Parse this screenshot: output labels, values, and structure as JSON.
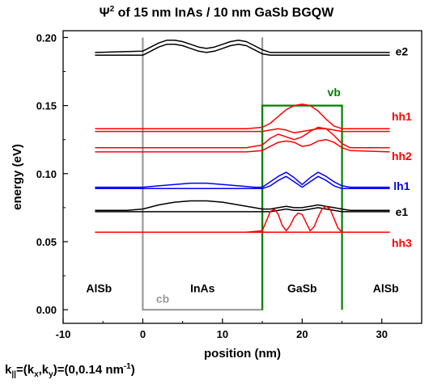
{
  "title": {
    "psi": "Ψ",
    "sup": "2",
    "rest": " of 15 nm InAs / 10 nm GaSb BGQW"
  },
  "footnote": {
    "k": "k",
    "k_sub": "||",
    "eq": "=(k",
    "kx_sub": "x",
    "comma": ",k",
    "ky_sub": "y",
    "val": ")=(0,0.14 nm",
    "exp": "-1",
    "close": ")"
  },
  "colors": {
    "black": "#000000",
    "red": "#ff0000",
    "blue": "#0000ff",
    "green": "#008000",
    "gray": "#999999"
  },
  "chart_data": {
    "type": "line",
    "xlabel": "position (nm)",
    "ylabel": "energy (eV)",
    "xlim": [
      -10,
      35
    ],
    "ylim": [
      -0.01,
      0.205
    ],
    "xticks": [
      -10,
      0,
      10,
      20,
      30
    ],
    "yticks": [
      "0.00",
      "0.05",
      "0.10",
      "0.15",
      "0.20"
    ],
    "region_labels": [
      {
        "text": "AlSb",
        "x": -5.5,
        "y": 0.013,
        "color": "#000000"
      },
      {
        "text": "InAs",
        "x": 7.5,
        "y": 0.013,
        "color": "#000000"
      },
      {
        "text": "GaSb",
        "x": 20.0,
        "y": 0.013,
        "color": "#000000"
      },
      {
        "text": "AlSb",
        "x": 30.5,
        "y": 0.013,
        "color": "#000000"
      }
    ],
    "band_edges": [
      {
        "name": "cb",
        "color": "#999999",
        "x": [
          0,
          0,
          15,
          15
        ],
        "y": [
          0.2,
          0.0,
          0.0,
          0.2
        ],
        "label_x": 2.5,
        "label_y": 0.005
      },
      {
        "name": "vb",
        "color": "#008000",
        "x": [
          15,
          15,
          25,
          25
        ],
        "y": [
          0.0,
          0.15,
          0.15,
          0.0
        ],
        "label_x": 24.0,
        "label_y": 0.157
      }
    ],
    "series": [
      {
        "name": "e2",
        "color": "#000000",
        "label_x": 32.5,
        "label_y": 0.187,
        "x": [
          -6,
          0,
          1,
          2,
          3,
          4,
          5,
          6,
          7,
          8,
          9,
          10,
          11,
          12,
          13,
          14,
          15,
          16,
          18,
          20,
          22,
          24,
          26,
          28,
          31
        ],
        "upper": [
          0.189,
          0.19,
          0.193,
          0.196,
          0.198,
          0.198,
          0.197,
          0.195,
          0.193,
          0.192,
          0.193,
          0.195,
          0.197,
          0.198,
          0.197,
          0.194,
          0.191,
          0.189,
          0.189,
          0.189,
          0.189,
          0.189,
          0.189,
          0.189,
          0.189
        ],
        "lower": [
          0.187,
          0.187,
          0.19,
          0.193,
          0.195,
          0.195,
          0.194,
          0.192,
          0.19,
          0.189,
          0.19,
          0.192,
          0.194,
          0.195,
          0.194,
          0.191,
          0.188,
          0.187,
          0.187,
          0.187,
          0.187,
          0.187,
          0.187,
          0.187,
          0.187
        ]
      },
      {
        "name": "hh1",
        "color": "#ff0000",
        "label_x": 32.5,
        "label_y": 0.139,
        "x": [
          -6,
          0,
          5,
          10,
          13,
          15,
          16,
          17,
          18,
          19,
          20,
          21,
          22,
          23,
          24,
          25,
          26,
          31
        ],
        "upper": [
          0.133,
          0.133,
          0.133,
          0.133,
          0.133,
          0.134,
          0.137,
          0.142,
          0.147,
          0.15,
          0.151,
          0.15,
          0.146,
          0.14,
          0.135,
          0.133,
          0.133,
          0.133
        ],
        "lower": [
          0.131,
          0.131,
          0.131,
          0.131,
          0.131,
          0.131,
          0.132,
          0.133,
          0.132,
          0.13,
          0.131,
          0.132,
          0.133,
          0.133,
          0.132,
          0.131,
          0.131,
          0.131
        ]
      },
      {
        "name": "hh2",
        "color": "#ff0000",
        "label_x": 32.5,
        "label_y": 0.11,
        "x": [
          -6,
          0,
          5,
          10,
          13,
          15,
          16,
          17,
          18,
          19,
          20,
          21,
          22,
          23,
          24,
          25,
          26,
          31
        ],
        "upper": [
          0.119,
          0.119,
          0.119,
          0.119,
          0.119,
          0.121,
          0.126,
          0.129,
          0.127,
          0.125,
          0.127,
          0.131,
          0.134,
          0.133,
          0.128,
          0.122,
          0.119,
          0.119
        ],
        "lower": [
          0.116,
          0.116,
          0.116,
          0.116,
          0.116,
          0.117,
          0.12,
          0.123,
          0.124,
          0.123,
          0.12,
          0.121,
          0.124,
          0.125,
          0.123,
          0.119,
          0.117,
          0.116
        ]
      },
      {
        "name": "lh1",
        "color": "#0000ff",
        "label_x": 32.5,
        "label_y": 0.088,
        "x": [
          -6,
          0,
          2,
          4,
          6,
          8,
          10,
          12,
          14,
          15,
          16,
          17,
          18,
          19,
          20,
          21,
          22,
          23,
          24,
          25,
          26,
          31
        ],
        "upper": [
          0.09,
          0.09,
          0.091,
          0.092,
          0.093,
          0.093,
          0.092,
          0.091,
          0.09,
          0.09,
          0.094,
          0.098,
          0.101,
          0.097,
          0.092,
          0.097,
          0.101,
          0.098,
          0.094,
          0.091,
          0.09,
          0.09
        ],
        "lower": [
          0.089,
          0.089,
          0.089,
          0.089,
          0.089,
          0.089,
          0.089,
          0.089,
          0.089,
          0.089,
          0.091,
          0.095,
          0.098,
          0.094,
          0.09,
          0.094,
          0.098,
          0.095,
          0.091,
          0.089,
          0.089,
          0.089
        ]
      },
      {
        "name": "e1",
        "color": "#000000",
        "label_x": 32.5,
        "label_y": 0.069,
        "x": [
          -6,
          -2,
          0,
          2,
          4,
          6,
          8,
          10,
          12,
          14,
          15,
          16,
          17,
          18,
          19,
          20,
          21,
          22,
          23,
          24,
          25,
          26,
          31
        ],
        "upper": [
          0.073,
          0.073,
          0.074,
          0.077,
          0.079,
          0.08,
          0.08,
          0.079,
          0.077,
          0.075,
          0.074,
          0.074,
          0.075,
          0.076,
          0.075,
          0.075,
          0.076,
          0.077,
          0.076,
          0.075,
          0.074,
          0.073,
          0.073
        ],
        "lower": [
          0.072,
          0.072,
          0.072,
          0.072,
          0.072,
          0.072,
          0.072,
          0.072,
          0.072,
          0.072,
          0.072,
          0.072,
          0.073,
          0.074,
          0.073,
          0.073,
          0.074,
          0.075,
          0.074,
          0.073,
          0.072,
          0.072,
          0.072
        ]
      },
      {
        "name": "hh3",
        "color": "#ff0000",
        "label_x": 32.5,
        "label_y": 0.046,
        "x": [
          -6,
          0,
          5,
          10,
          13,
          15,
          15.5,
          16,
          16.5,
          17,
          17.5,
          18,
          18.5,
          19,
          19.5,
          20,
          20.5,
          21,
          21.5,
          22,
          22.5,
          23,
          23.5,
          24,
          24.5,
          25,
          26,
          31
        ],
        "upper": [
          0.057,
          0.057,
          0.057,
          0.057,
          0.057,
          0.058,
          0.065,
          0.072,
          0.074,
          0.07,
          0.062,
          0.058,
          0.062,
          0.068,
          0.071,
          0.07,
          0.064,
          0.058,
          0.061,
          0.068,
          0.074,
          0.076,
          0.074,
          0.067,
          0.06,
          0.057,
          0.057,
          0.057
        ],
        "lower": [
          0.057,
          0.057,
          0.057,
          0.057,
          0.057,
          0.057,
          0.057,
          0.057,
          0.057,
          0.057,
          0.057,
          0.057,
          0.057,
          0.057,
          0.057,
          0.057,
          0.057,
          0.057,
          0.057,
          0.057,
          0.057,
          0.057,
          0.057,
          0.057,
          0.057,
          0.057,
          0.057,
          0.057
        ]
      }
    ]
  }
}
